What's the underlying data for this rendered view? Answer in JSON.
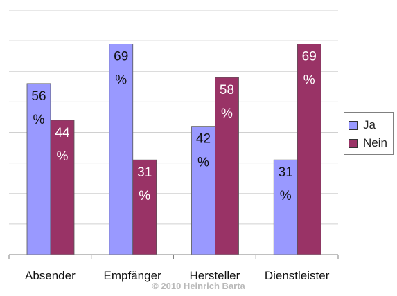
{
  "chart_data": {
    "type": "bar",
    "categories": [
      "Absender",
      "Empfänger",
      "Hersteller",
      "Dienstleister"
    ],
    "series": [
      {
        "name": "Ja",
        "values": [
          56,
          69,
          42,
          31
        ],
        "color": "#9999ff"
      },
      {
        "name": "Nein",
        "values": [
          44,
          31,
          58,
          69
        ],
        "color": "#993366"
      }
    ],
    "data_label_suffix": "%",
    "ylim": [
      0,
      80
    ],
    "grid": true,
    "legend_position": "right"
  },
  "copyright": "© 2010 Heinrich Barta"
}
